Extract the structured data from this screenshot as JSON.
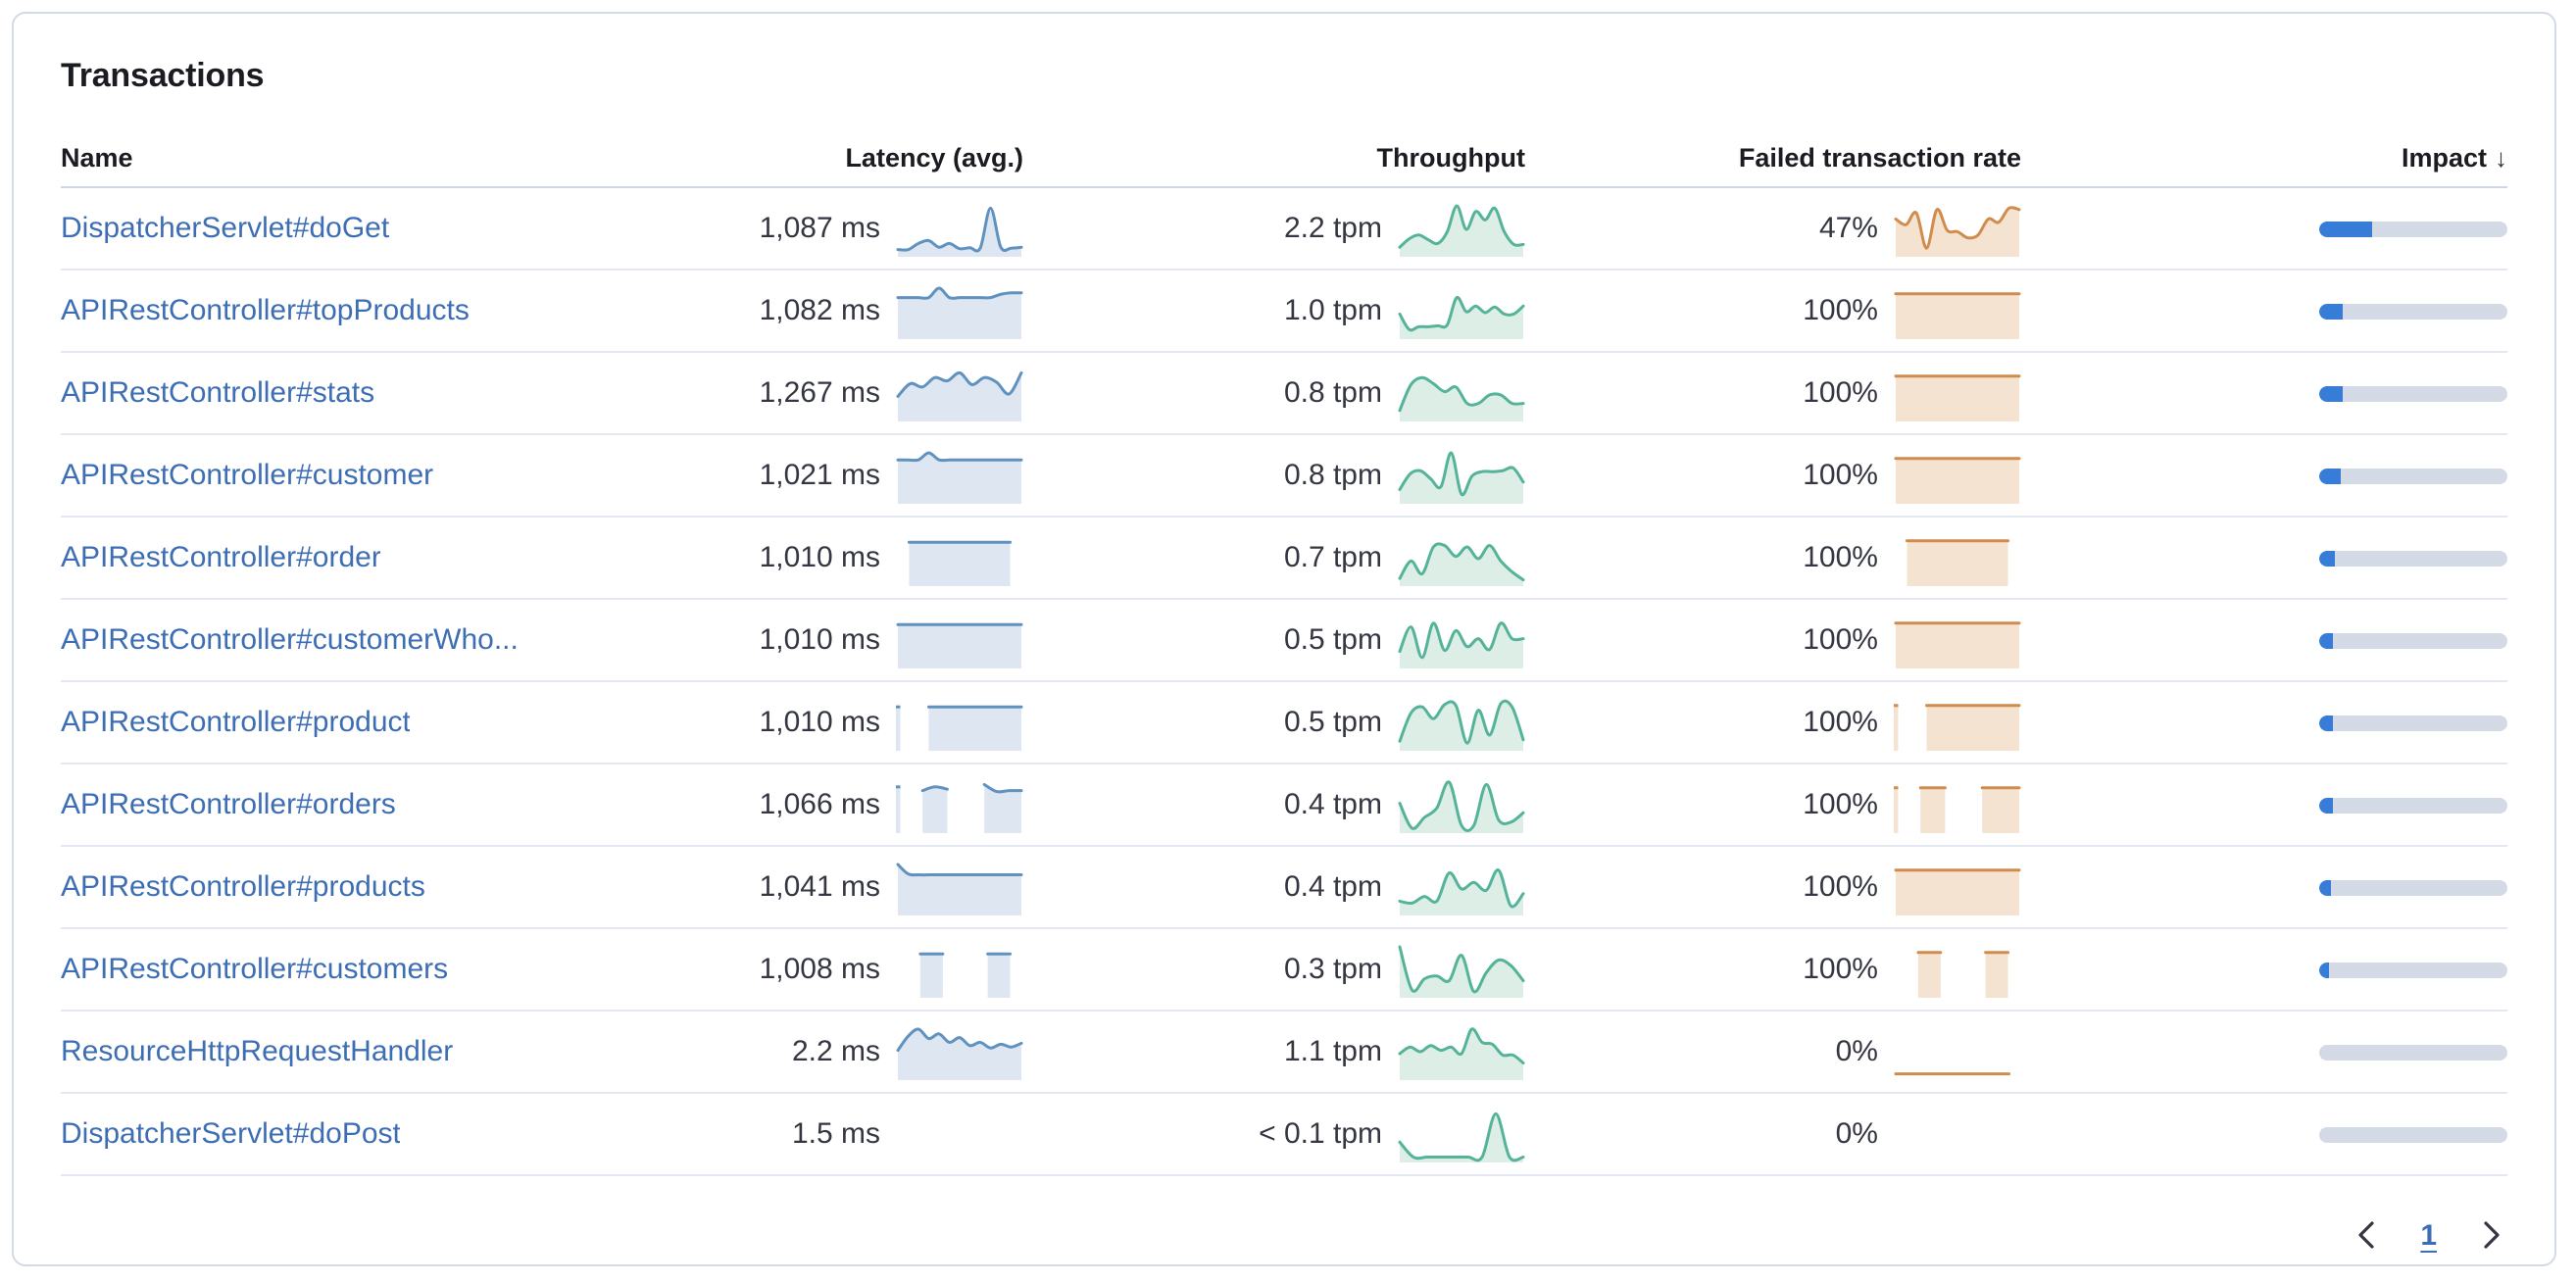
{
  "panel": {
    "title": "Transactions"
  },
  "table": {
    "columns": {
      "name": "Name",
      "latency": "Latency (avg.)",
      "throughput": "Throughput",
      "failed_rate": "Failed transaction rate",
      "impact": "Impact"
    },
    "sort": {
      "column": "impact",
      "direction": "desc",
      "icon": "↓"
    }
  },
  "colors": {
    "link": "#3d6eb4",
    "value_text": "#343741",
    "latency_line": "#6092c0",
    "latency_fill": "#dde6f1",
    "throughput_line": "#54b399",
    "throughput_fill": "#ddeee7",
    "failed_line": "#d08c4c",
    "failed_fill": "#f4e3d1",
    "impact_fill": "#377dd7",
    "impact_track": "#d3dae6"
  },
  "rows": [
    {
      "name": "DispatcherServlet#doGet",
      "latency": {
        "value": "1,087 ms",
        "spark": [
          0.07,
          0.07,
          0.2,
          0.26,
          0.12,
          0.2,
          0.09,
          0.11,
          0.1,
          0.95,
          0.12,
          0.1,
          0.12
        ]
      },
      "throughput": {
        "value": "2.2 tpm",
        "spark": [
          0.12,
          0.3,
          0.38,
          0.28,
          0.2,
          0.45,
          1.0,
          0.5,
          0.88,
          0.7,
          0.95,
          0.45,
          0.18,
          0.18
        ]
      },
      "failed_rate": {
        "value": "47%",
        "spark": [
          0.72,
          0.6,
          0.85,
          0.1,
          0.92,
          0.48,
          0.45,
          0.32,
          0.38,
          0.72,
          0.65,
          0.95,
          0.92
        ]
      },
      "impact": 0.285
    },
    {
      "name": "APIRestController#topProducts",
      "latency": {
        "value": "1,082 ms",
        "spark": [
          0.8,
          0.8,
          0.8,
          0.8,
          1.0,
          0.8,
          0.8,
          0.8,
          0.8,
          0.8,
          0.87,
          0.9,
          0.9
        ]
      },
      "throughput": {
        "value": "1.0 tpm",
        "spark": [
          0.45,
          0.12,
          0.18,
          0.18,
          0.2,
          0.22,
          0.8,
          0.5,
          0.62,
          0.48,
          0.6,
          0.45,
          0.45,
          0.62
        ]
      },
      "failed_rate": {
        "value": "100%",
        "spark": [
          0.88,
          0.88,
          0.88,
          0.88,
          0.88,
          0.88,
          0.88,
          0.88,
          0.88,
          0.88,
          0.88,
          0.88,
          0.88
        ]
      },
      "impact": 0.125
    },
    {
      "name": "APIRestController#stats",
      "latency": {
        "value": "1,267 ms",
        "spark": [
          0.45,
          0.72,
          0.65,
          0.85,
          0.78,
          0.95,
          0.7,
          0.85,
          0.75,
          0.5,
          0.95
        ]
      },
      "throughput": {
        "value": "0.8 tpm",
        "spark": [
          0.15,
          0.7,
          0.85,
          0.72,
          0.55,
          0.65,
          0.3,
          0.3,
          0.48,
          0.48,
          0.3,
          0.3
        ]
      },
      "failed_rate": {
        "value": "100%",
        "spark": [
          0.88,
          0.88,
          0.88,
          0.88,
          0.88,
          0.88,
          0.88,
          0.88,
          0.88,
          0.88,
          0.88,
          0.88,
          0.88
        ]
      },
      "impact": 0.12
    },
    {
      "name": "APIRestController#customer",
      "latency": {
        "value": "1,021 ms",
        "spark": [
          0.85,
          0.85,
          0.85,
          1.0,
          0.85,
          0.85,
          0.85,
          0.85,
          0.85,
          0.85,
          0.85,
          0.85,
          0.85
        ]
      },
      "throughput": {
        "value": "0.8 tpm",
        "spark": [
          0.22,
          0.55,
          0.62,
          0.45,
          0.28,
          1.0,
          0.12,
          0.5,
          0.6,
          0.6,
          0.62,
          0.68,
          0.38
        ]
      },
      "failed_rate": {
        "value": "100%",
        "spark": [
          0.88,
          0.88,
          0.88,
          0.88,
          0.88,
          0.88,
          0.88,
          0.88,
          0.88,
          0.88,
          0.88,
          0.88,
          0.88
        ]
      },
      "impact": 0.115
    },
    {
      "name": "APIRestController#order",
      "latency": {
        "value": "1,010 ms",
        "spark": [
          null,
          0.85,
          0.85,
          0.85,
          0.85,
          0.85,
          0.85,
          0.85,
          0.85,
          0.85,
          0.85,
          null
        ]
      },
      "throughput": {
        "value": "0.7 tpm",
        "spark": [
          0.08,
          0.45,
          0.18,
          0.75,
          0.78,
          0.55,
          0.75,
          0.5,
          0.78,
          0.45,
          0.22,
          0.05
        ]
      },
      "failed_rate": {
        "value": "100%",
        "spark": [
          null,
          0.88,
          0.88,
          0.88,
          0.88,
          0.88,
          0.88,
          0.88,
          0.88,
          0.88,
          0.88,
          null
        ]
      },
      "impact": 0.08
    },
    {
      "name": "APIRestController#customerWho...",
      "latency": {
        "value": "1,010 ms",
        "spark": [
          0.85,
          0.85,
          0.85,
          0.85,
          0.85,
          0.85,
          0.85,
          0.85,
          0.85,
          0.85,
          0.85,
          0.85,
          0.85
        ]
      },
      "throughput": {
        "value": "0.5 tpm",
        "spark": [
          0.28,
          0.8,
          0.15,
          0.88,
          0.3,
          0.72,
          0.38,
          0.55,
          0.32,
          0.88,
          0.55,
          0.55
        ]
      },
      "failed_rate": {
        "value": "100%",
        "spark": [
          0.88,
          0.88,
          0.88,
          0.88,
          0.88,
          0.88,
          0.88,
          0.88,
          0.88,
          0.88,
          0.88,
          0.88,
          0.88
        ]
      },
      "impact": 0.075
    },
    {
      "name": "APIRestController#product",
      "latency": {
        "value": "1,010 ms",
        "spark": [
          0.85,
          null,
          null,
          0.85,
          0.85,
          0.85,
          0.85,
          0.85,
          0.85,
          0.85,
          0.85,
          0.85,
          0.85
        ]
      },
      "throughput": {
        "value": "0.5 tpm",
        "spark": [
          0.12,
          0.72,
          0.85,
          0.6,
          0.9,
          0.88,
          0.08,
          0.78,
          0.25,
          0.92,
          0.85,
          0.15
        ]
      },
      "failed_rate": {
        "value": "100%",
        "spark": [
          0.88,
          null,
          null,
          0.88,
          0.88,
          0.88,
          0.88,
          0.88,
          0.88,
          0.88,
          0.88,
          0.88,
          0.88
        ]
      },
      "impact": 0.072
    },
    {
      "name": "APIRestController#orders",
      "latency": {
        "value": "1,066 ms",
        "spark": [
          0.9,
          null,
          0.82,
          0.9,
          0.85,
          null,
          null,
          0.95,
          0.8,
          0.82,
          0.82
        ]
      },
      "throughput": {
        "value": "0.4 tpm",
        "spark": [
          0.55,
          0.02,
          0.25,
          0.45,
          1.0,
          0.08,
          0.08,
          0.95,
          0.2,
          0.15,
          0.35
        ]
      },
      "failed_rate": {
        "value": "100%",
        "spark": [
          0.88,
          null,
          0.88,
          0.88,
          0.88,
          null,
          null,
          0.88,
          0.88,
          0.88,
          0.88
        ]
      },
      "impact": 0.068
    },
    {
      "name": "APIRestController#products",
      "latency": {
        "value": "1,041 ms",
        "spark": [
          1.0,
          0.8,
          0.78,
          0.78,
          0.78,
          0.78,
          0.78,
          0.78,
          0.78,
          0.78,
          0.78,
          0.78,
          0.78
        ]
      },
      "throughput": {
        "value": "0.4 tpm",
        "spark": [
          0.22,
          0.18,
          0.32,
          0.22,
          0.82,
          0.48,
          0.62,
          0.45,
          0.88,
          0.12,
          0.38
        ]
      },
      "failed_rate": {
        "value": "100%",
        "spark": [
          0.88,
          0.88,
          0.88,
          0.88,
          0.88,
          0.88,
          0.88,
          0.88,
          0.88,
          0.88,
          0.88,
          0.88,
          0.88
        ]
      },
      "impact": 0.065
    },
    {
      "name": "APIRestController#customers",
      "latency": {
        "value": "1,008 ms",
        "spark": [
          null,
          null,
          0.85,
          0.85,
          0.85,
          null,
          null,
          null,
          0.85,
          0.85,
          0.85,
          null
        ]
      },
      "throughput": {
        "value": "0.3 tpm",
        "spark": [
          1.0,
          0.08,
          0.32,
          0.38,
          0.28,
          0.82,
          0.05,
          0.45,
          0.72,
          0.6,
          0.28
        ]
      },
      "failed_rate": {
        "value": "100%",
        "spark": [
          null,
          null,
          0.88,
          0.88,
          0.88,
          null,
          null,
          null,
          0.88,
          0.88,
          0.88,
          null
        ]
      },
      "impact": 0.05
    },
    {
      "name": "ResourceHttpRequestHandler",
      "latency": {
        "value": "2.2 ms",
        "spark": [
          0.55,
          0.85,
          1.0,
          0.8,
          0.9,
          0.72,
          0.82,
          0.65,
          0.72,
          0.6,
          0.68,
          0.62,
          0.7
        ]
      },
      "throughput": {
        "value": "1.1 tpm",
        "spark": [
          0.48,
          0.62,
          0.52,
          0.65,
          0.55,
          0.62,
          0.48,
          1.0,
          0.72,
          0.68,
          0.45,
          0.45,
          0.28
        ]
      },
      "failed_rate": {
        "value": "0%",
        "spark": [
          0.05,
          0.05,
          0.05,
          0.05,
          0.05,
          0.05,
          0.05,
          0.05,
          0.05,
          0.05,
          0.05,
          0.05,
          null
        ],
        "line_only": true
      },
      "impact": 0
    },
    {
      "name": "DispatcherServlet#doPost",
      "latency": {
        "value": "1.5 ms",
        "spark": []
      },
      "throughput": {
        "value": "< 0.1 tpm",
        "spark": [
          0.35,
          0.03,
          0.03,
          0.03,
          0.03,
          0.03,
          0.03,
          0.95,
          0.03,
          0.03
        ]
      },
      "failed_rate": {
        "value": "0%",
        "spark": []
      },
      "impact": 0
    }
  ],
  "pagination": {
    "current": "1",
    "previous_icon": "chevron-left",
    "next_icon": "chevron-right"
  }
}
